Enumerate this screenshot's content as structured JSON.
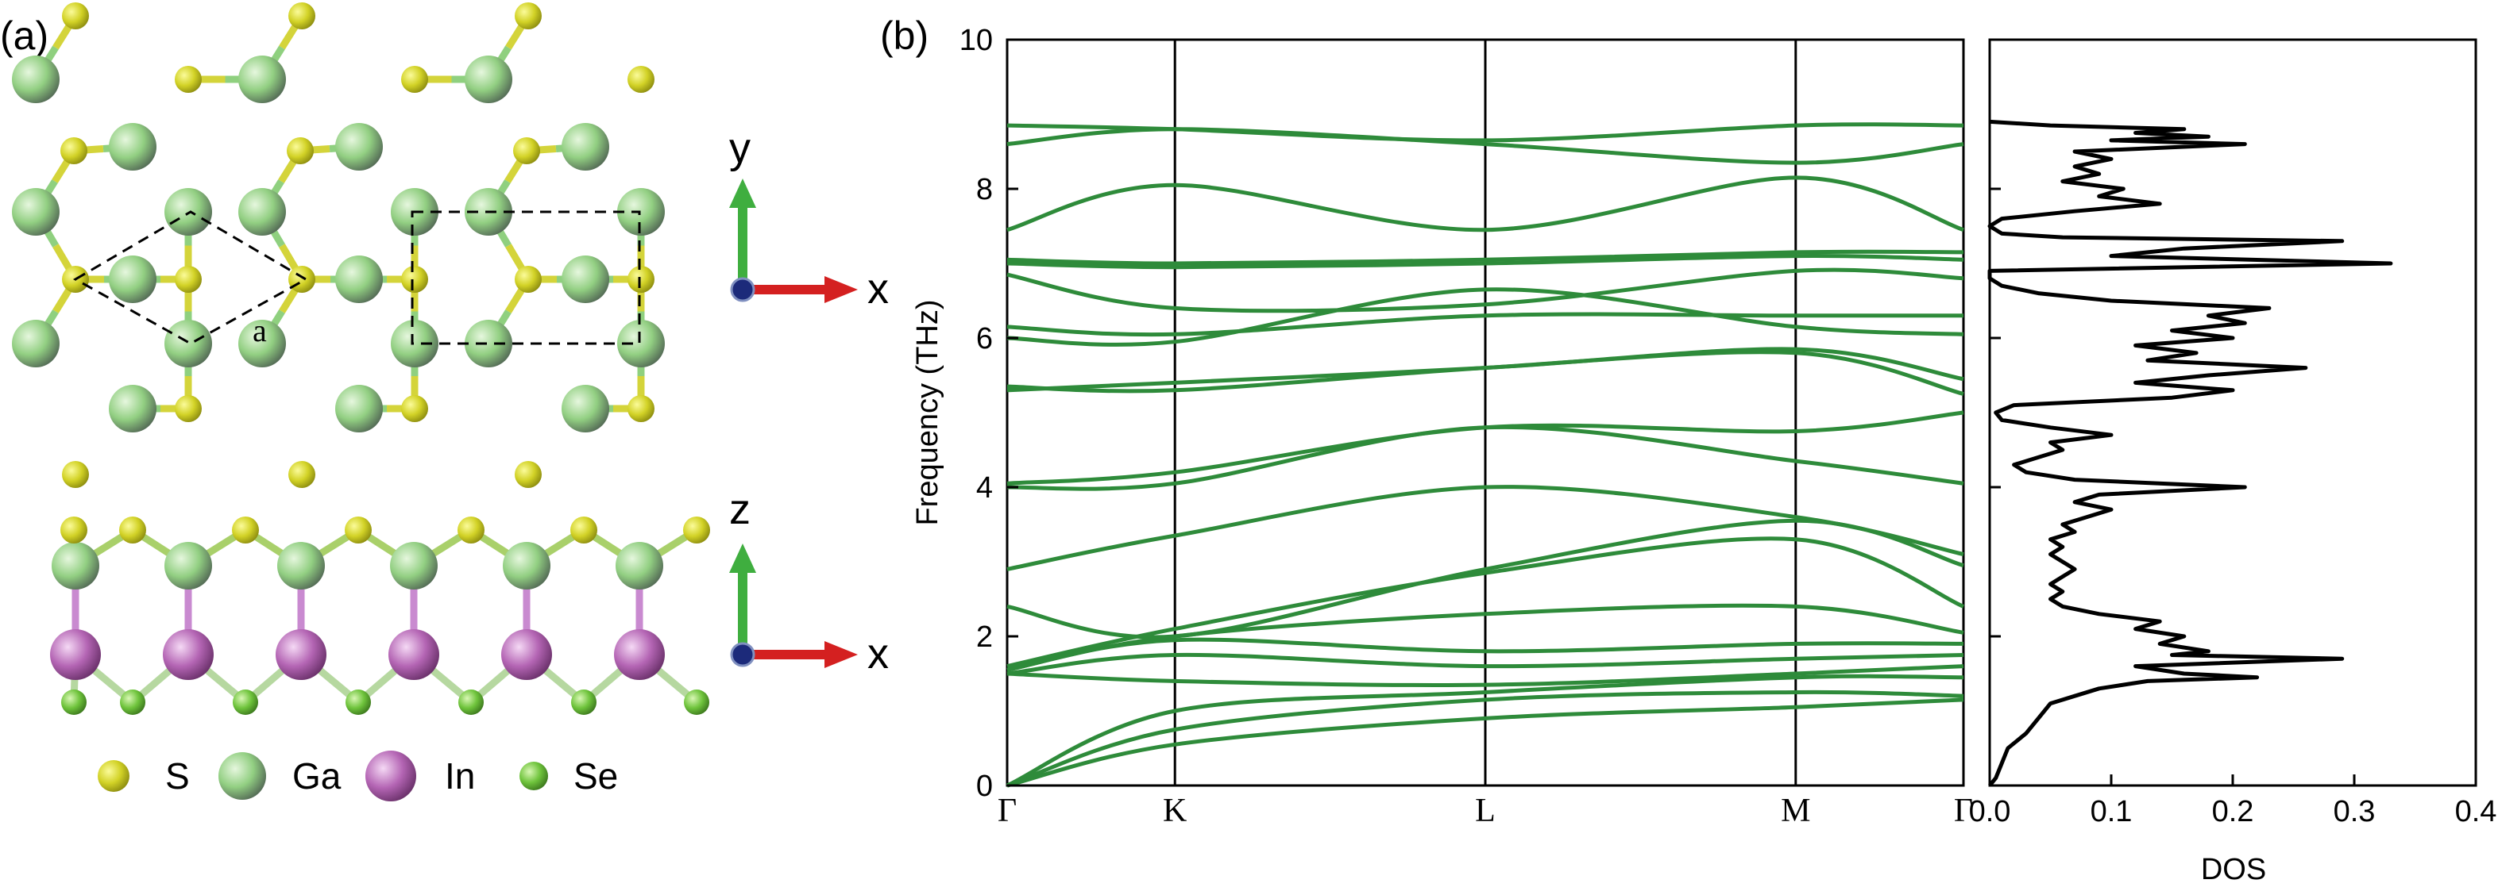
{
  "panel_a": {
    "label": "(a)",
    "lattice_label": "a",
    "top_axes": {
      "vertical": "y",
      "horizontal": "x"
    },
    "side_axes": {
      "vertical": "z",
      "horizontal": "x"
    },
    "legend": [
      {
        "name": "S",
        "color": "#c8c81e"
      },
      {
        "name": "Ga",
        "color": "#8fd07f"
      },
      {
        "name": "In",
        "color": "#b463b4"
      },
      {
        "name": "Se",
        "color": "#6cc23a"
      }
    ]
  },
  "panel_b": {
    "label": "(b)"
  },
  "chart_data": [
    {
      "type": "line",
      "title": "",
      "ylabel": "Frequency (THz)",
      "ylim": [
        0,
        10
      ],
      "yticks": [
        "0",
        "2",
        "4",
        "6",
        "8",
        "10"
      ],
      "kpath": [
        "Γ",
        "K",
        "L",
        "M",
        "Γ"
      ],
      "kpath_positions": [
        0,
        1,
        2.85,
        4.7,
        5.7
      ],
      "line_color": "#2e8b3a",
      "bands": [
        [
          0,
          0.55,
          0.9,
          1.05,
          1.15
        ],
        [
          0,
          0.75,
          1.15,
          1.25,
          1.2
        ],
        [
          0,
          1.0,
          1.25,
          1.45,
          1.45
        ],
        [
          1.5,
          1.4,
          1.35,
          1.5,
          1.6
        ],
        [
          1.5,
          1.75,
          1.6,
          1.7,
          1.75
        ],
        [
          1.55,
          1.95,
          1.8,
          1.9,
          1.9
        ],
        [
          1.55,
          2.0,
          2.3,
          2.4,
          2.05
        ],
        [
          1.6,
          2.1,
          2.85,
          3.3,
          2.4
        ],
        [
          2.4,
          2.0,
          2.9,
          3.55,
          2.95
        ],
        [
          2.9,
          3.35,
          4.0,
          3.6,
          3.1
        ],
        [
          4.0,
          4.05,
          4.8,
          4.35,
          4.05
        ],
        [
          4.05,
          4.2,
          4.8,
          4.75,
          5.0
        ],
        [
          5.3,
          5.4,
          5.6,
          5.85,
          5.45
        ],
        [
          5.35,
          5.3,
          5.6,
          5.8,
          5.25
        ],
        [
          6.0,
          5.95,
          6.65,
          6.15,
          6.05
        ],
        [
          6.15,
          6.05,
          6.3,
          6.3,
          6.3
        ],
        [
          6.85,
          6.4,
          6.45,
          6.9,
          6.8
        ],
        [
          7.0,
          6.95,
          7.0,
          7.1,
          7.05
        ],
        [
          7.05,
          7.0,
          7.05,
          7.15,
          7.15
        ],
        [
          7.45,
          8.05,
          7.45,
          8.15,
          7.45
        ],
        [
          8.6,
          8.8,
          8.6,
          8.35,
          8.6
        ],
        [
          8.85,
          8.8,
          8.65,
          8.85,
          8.85
        ]
      ]
    },
    {
      "type": "line",
      "title": "",
      "xlabel": "DOS",
      "xlim": [
        0.0,
        0.4
      ],
      "xticks": [
        "0.0",
        "0.1",
        "0.2",
        "0.3",
        "0.4"
      ],
      "ylim": [
        0,
        10
      ],
      "line_color": "#000000",
      "dos": [
        {
          "f": 0.0,
          "v": 0.0
        },
        {
          "f": 0.1,
          "v": 0.005
        },
        {
          "f": 0.3,
          "v": 0.01
        },
        {
          "f": 0.5,
          "v": 0.015
        },
        {
          "f": 0.7,
          "v": 0.03
        },
        {
          "f": 0.9,
          "v": 0.04
        },
        {
          "f": 1.1,
          "v": 0.05
        },
        {
          "f": 1.2,
          "v": 0.07
        },
        {
          "f": 1.3,
          "v": 0.09
        },
        {
          "f": 1.4,
          "v": 0.13
        },
        {
          "f": 1.45,
          "v": 0.22
        },
        {
          "f": 1.5,
          "v": 0.16
        },
        {
          "f": 1.6,
          "v": 0.12
        },
        {
          "f": 1.7,
          "v": 0.29
        },
        {
          "f": 1.75,
          "v": 0.15
        },
        {
          "f": 1.8,
          "v": 0.18
        },
        {
          "f": 1.9,
          "v": 0.14
        },
        {
          "f": 2.0,
          "v": 0.16
        },
        {
          "f": 2.1,
          "v": 0.12
        },
        {
          "f": 2.2,
          "v": 0.14
        },
        {
          "f": 2.3,
          "v": 0.09
        },
        {
          "f": 2.4,
          "v": 0.06
        },
        {
          "f": 2.5,
          "v": 0.05
        },
        {
          "f": 2.6,
          "v": 0.06
        },
        {
          "f": 2.7,
          "v": 0.05
        },
        {
          "f": 2.8,
          "v": 0.06
        },
        {
          "f": 2.9,
          "v": 0.07
        },
        {
          "f": 3.0,
          "v": 0.06
        },
        {
          "f": 3.1,
          "v": 0.05
        },
        {
          "f": 3.2,
          "v": 0.06
        },
        {
          "f": 3.3,
          "v": 0.05
        },
        {
          "f": 3.4,
          "v": 0.07
        },
        {
          "f": 3.5,
          "v": 0.06
        },
        {
          "f": 3.6,
          "v": 0.08
        },
        {
          "f": 3.7,
          "v": 0.1
        },
        {
          "f": 3.8,
          "v": 0.07
        },
        {
          "f": 3.9,
          "v": 0.09
        },
        {
          "f": 4.0,
          "v": 0.21
        },
        {
          "f": 4.1,
          "v": 0.07
        },
        {
          "f": 4.2,
          "v": 0.03
        },
        {
          "f": 4.3,
          "v": 0.02
        },
        {
          "f": 4.4,
          "v": 0.04
        },
        {
          "f": 4.5,
          "v": 0.06
        },
        {
          "f": 4.6,
          "v": 0.05
        },
        {
          "f": 4.7,
          "v": 0.1
        },
        {
          "f": 4.8,
          "v": 0.05
        },
        {
          "f": 4.9,
          "v": 0.01
        },
        {
          "f": 5.0,
          "v": 0.005
        },
        {
          "f": 5.1,
          "v": 0.02
        },
        {
          "f": 5.2,
          "v": 0.15
        },
        {
          "f": 5.3,
          "v": 0.2
        },
        {
          "f": 5.4,
          "v": 0.12
        },
        {
          "f": 5.5,
          "v": 0.18
        },
        {
          "f": 5.6,
          "v": 0.26
        },
        {
          "f": 5.7,
          "v": 0.13
        },
        {
          "f": 5.8,
          "v": 0.17
        },
        {
          "f": 5.9,
          "v": 0.12
        },
        {
          "f": 6.0,
          "v": 0.2
        },
        {
          "f": 6.1,
          "v": 0.15
        },
        {
          "f": 6.2,
          "v": 0.21
        },
        {
          "f": 6.3,
          "v": 0.18
        },
        {
          "f": 6.4,
          "v": 0.23
        },
        {
          "f": 6.5,
          "v": 0.1
        },
        {
          "f": 6.6,
          "v": 0.04
        },
        {
          "f": 6.7,
          "v": 0.01
        },
        {
          "f": 6.8,
          "v": 0.0
        },
        {
          "f": 6.9,
          "v": 0.0
        },
        {
          "f": 7.0,
          "v": 0.33
        },
        {
          "f": 7.1,
          "v": 0.1
        },
        {
          "f": 7.2,
          "v": 0.16
        },
        {
          "f": 7.3,
          "v": 0.29
        },
        {
          "f": 7.35,
          "v": 0.06
        },
        {
          "f": 7.4,
          "v": 0.01
        },
        {
          "f": 7.5,
          "v": 0.0
        },
        {
          "f": 7.6,
          "v": 0.01
        },
        {
          "f": 7.7,
          "v": 0.07
        },
        {
          "f": 7.8,
          "v": 0.14
        },
        {
          "f": 7.9,
          "v": 0.09
        },
        {
          "f": 8.0,
          "v": 0.11
        },
        {
          "f": 8.1,
          "v": 0.06
        },
        {
          "f": 8.2,
          "v": 0.09
        },
        {
          "f": 8.3,
          "v": 0.07
        },
        {
          "f": 8.4,
          "v": 0.1
        },
        {
          "f": 8.5,
          "v": 0.07
        },
        {
          "f": 8.6,
          "v": 0.21
        },
        {
          "f": 8.65,
          "v": 0.1
        },
        {
          "f": 8.7,
          "v": 0.18
        },
        {
          "f": 8.75,
          "v": 0.12
        },
        {
          "f": 8.8,
          "v": 0.16
        },
        {
          "f": 8.85,
          "v": 0.05
        },
        {
          "f": 8.9,
          "v": 0.0
        }
      ]
    }
  ]
}
